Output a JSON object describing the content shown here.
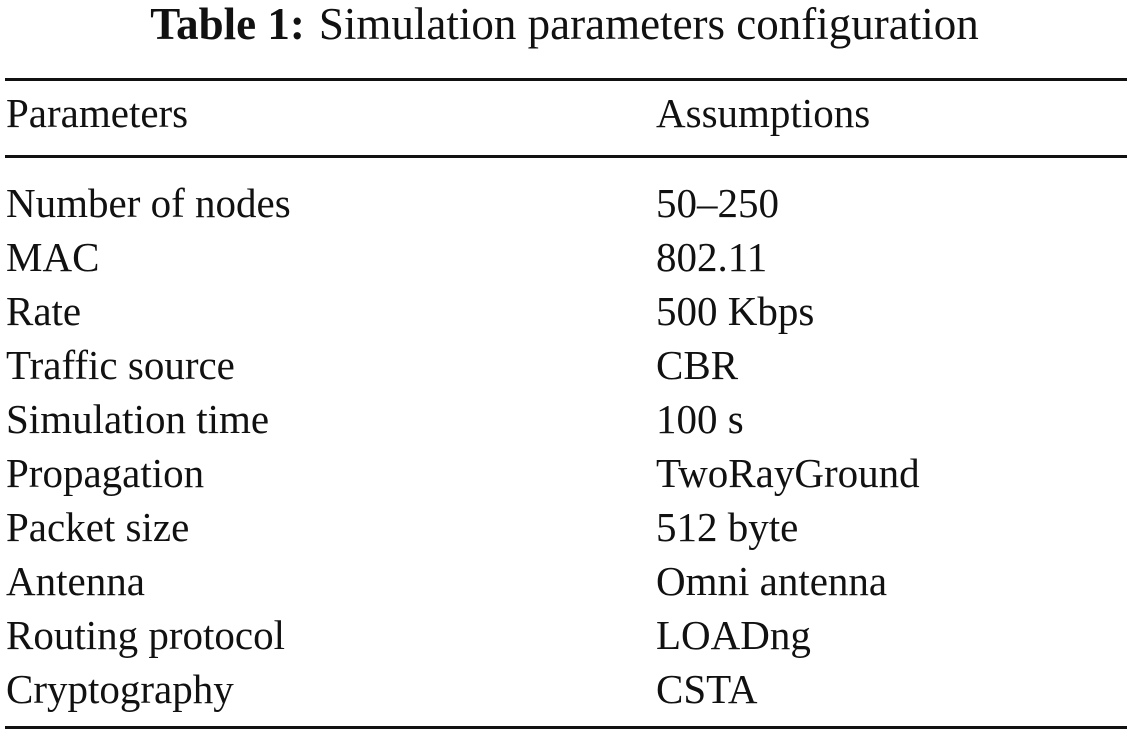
{
  "caption": {
    "label": "Table 1:",
    "title": "Simulation parameters configuration"
  },
  "table": {
    "headers": [
      "Parameters",
      "Assumptions"
    ],
    "rows": [
      [
        "Number of nodes",
        "50–250"
      ],
      [
        "MAC",
        "802.11"
      ],
      [
        "Rate",
        "500 Kbps"
      ],
      [
        "Traffic source",
        "CBR"
      ],
      [
        "Simulation time",
        "100 s"
      ],
      [
        "Propagation",
        "TwoRayGround"
      ],
      [
        "Packet size",
        "512 byte"
      ],
      [
        "Antenna",
        "Omni antenna"
      ],
      [
        "Routing protocol",
        "LOADng"
      ],
      [
        "Cryptography",
        "CSTA"
      ]
    ]
  }
}
